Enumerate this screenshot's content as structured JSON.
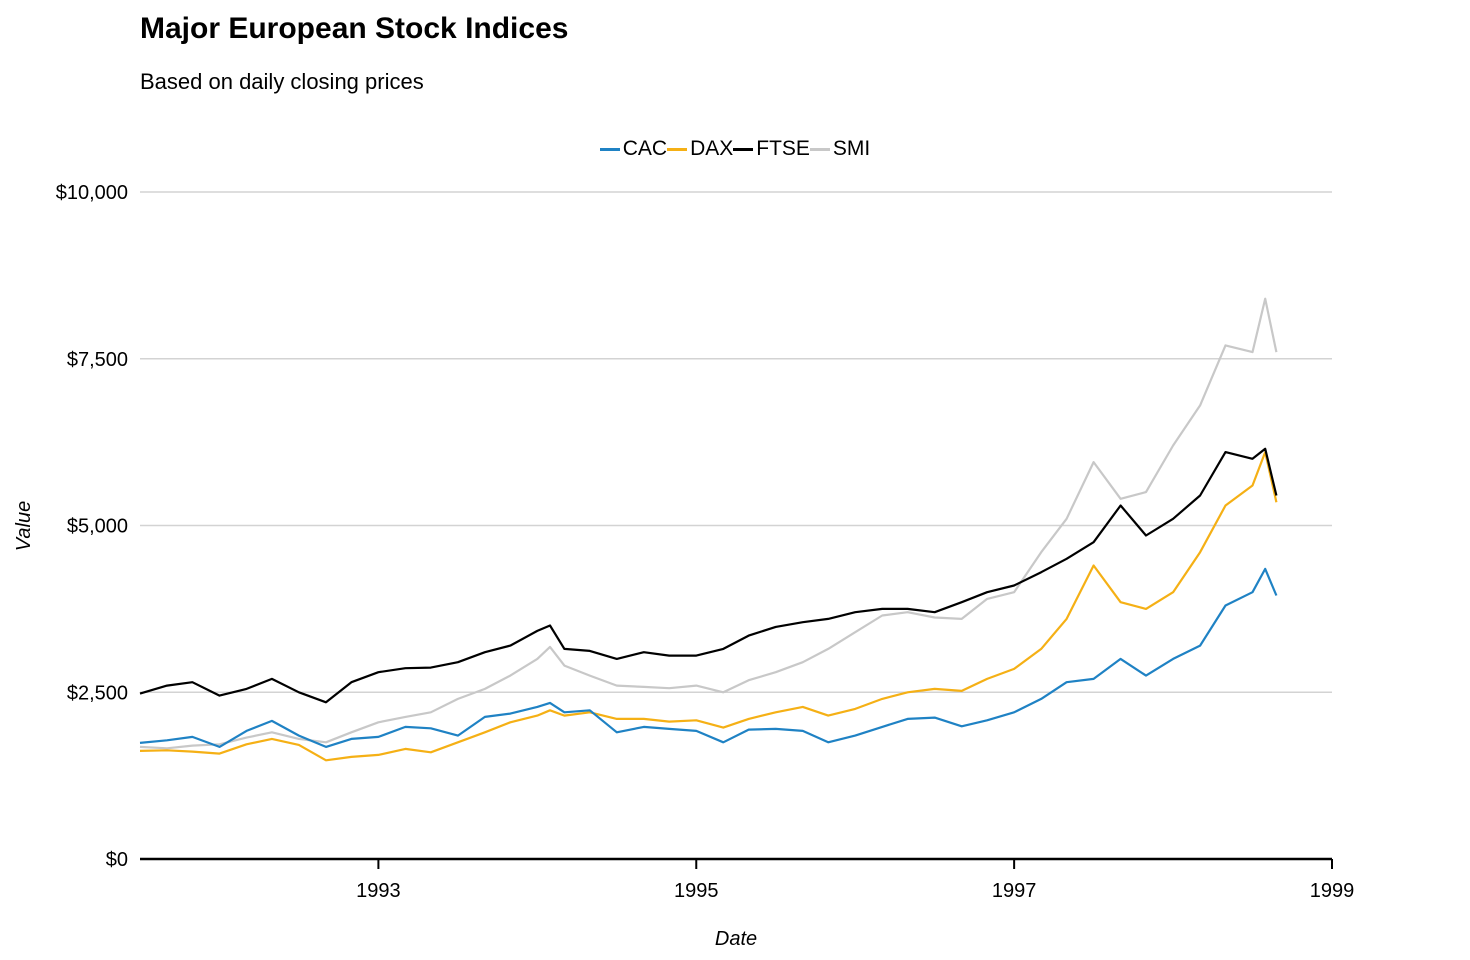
{
  "chart_data": {
    "type": "line",
    "title": "Major European Stock Indices",
    "subtitle": "Based on daily closing prices",
    "xlabel": "Date",
    "ylabel": "Value",
    "xlim": [
      1991.5,
      1999.0
    ],
    "ylim": [
      0,
      10000
    ],
    "x_ticks": [
      1993,
      1995,
      1997,
      1999
    ],
    "x_tick_labels": [
      "1993",
      "1995",
      "1997",
      "1999"
    ],
    "y_ticks": [
      0,
      2500,
      5000,
      7500,
      10000
    ],
    "y_tick_labels": [
      "$0",
      "$2,500",
      "$5,000",
      "$7,500",
      "$10,000"
    ],
    "grid": "horizontal",
    "legend_position": "top",
    "series": [
      {
        "name": "CAC",
        "color": "#1f82c4",
        "x": [
          1991.5,
          1991.67,
          1991.83,
          1992.0,
          1992.17,
          1992.33,
          1992.5,
          1992.67,
          1992.83,
          1993.0,
          1993.17,
          1993.33,
          1993.5,
          1993.67,
          1993.83,
          1994.0,
          1994.08,
          1994.17,
          1994.33,
          1994.5,
          1994.67,
          1994.83,
          1995.0,
          1995.17,
          1995.33,
          1995.5,
          1995.67,
          1995.83,
          1996.0,
          1996.17,
          1996.33,
          1996.5,
          1996.67,
          1996.83,
          1997.0,
          1997.17,
          1997.33,
          1997.5,
          1997.67,
          1997.83,
          1998.0,
          1998.17,
          1998.33,
          1998.5,
          1998.58,
          1998.65
        ],
        "values": [
          1740,
          1780,
          1830,
          1680,
          1920,
          2070,
          1850,
          1680,
          1800,
          1830,
          1980,
          1960,
          1850,
          2130,
          2180,
          2280,
          2340,
          2200,
          2230,
          1900,
          1980,
          1950,
          1920,
          1750,
          1940,
          1950,
          1920,
          1750,
          1850,
          1980,
          2100,
          2120,
          1990,
          2080,
          2200,
          2400,
          2650,
          2700,
          3000,
          2750,
          3000,
          3200,
          3800,
          4000,
          4350,
          3950
        ]
      },
      {
        "name": "DAX",
        "color": "#f5b015",
        "x": [
          1991.5,
          1991.67,
          1991.83,
          1992.0,
          1992.17,
          1992.33,
          1992.5,
          1992.67,
          1992.83,
          1993.0,
          1993.17,
          1993.33,
          1993.5,
          1993.67,
          1993.83,
          1994.0,
          1994.08,
          1994.17,
          1994.33,
          1994.5,
          1994.67,
          1994.83,
          1995.0,
          1995.17,
          1995.33,
          1995.5,
          1995.67,
          1995.83,
          1996.0,
          1996.17,
          1996.33,
          1996.5,
          1996.67,
          1996.83,
          1997.0,
          1997.17,
          1997.33,
          1997.5,
          1997.67,
          1997.83,
          1998.0,
          1998.17,
          1998.33,
          1998.5,
          1998.58,
          1998.65
        ],
        "values": [
          1620,
          1630,
          1610,
          1580,
          1720,
          1800,
          1710,
          1480,
          1530,
          1560,
          1650,
          1600,
          1750,
          1900,
          2050,
          2150,
          2230,
          2150,
          2200,
          2100,
          2100,
          2060,
          2080,
          1970,
          2100,
          2200,
          2280,
          2150,
          2250,
          2400,
          2500,
          2550,
          2520,
          2700,
          2850,
          3150,
          3600,
          4400,
          3850,
          3750,
          4000,
          4600,
          5300,
          5600,
          6100,
          5350
        ]
      },
      {
        "name": "FTSE",
        "color": "#000000",
        "x": [
          1991.5,
          1991.67,
          1991.83,
          1992.0,
          1992.17,
          1992.33,
          1992.5,
          1992.67,
          1992.83,
          1993.0,
          1993.17,
          1993.33,
          1993.5,
          1993.67,
          1993.83,
          1994.0,
          1994.08,
          1994.17,
          1994.33,
          1994.5,
          1994.67,
          1994.83,
          1995.0,
          1995.17,
          1995.33,
          1995.5,
          1995.67,
          1995.83,
          1996.0,
          1996.17,
          1996.33,
          1996.5,
          1996.67,
          1996.83,
          1997.0,
          1997.17,
          1997.33,
          1997.5,
          1997.67,
          1997.83,
          1998.0,
          1998.17,
          1998.33,
          1998.5,
          1998.58,
          1998.65
        ],
        "values": [
          2480,
          2600,
          2650,
          2450,
          2550,
          2700,
          2500,
          2350,
          2650,
          2800,
          2860,
          2870,
          2950,
          3100,
          3200,
          3420,
          3500,
          3150,
          3120,
          3000,
          3100,
          3050,
          3050,
          3150,
          3350,
          3480,
          3550,
          3600,
          3700,
          3750,
          3750,
          3700,
          3850,
          4000,
          4100,
          4300,
          4500,
          4750,
          5300,
          4850,
          5100,
          5450,
          6100,
          6000,
          6150,
          5450
        ]
      },
      {
        "name": "SMI",
        "color": "#c8c8c8",
        "x": [
          1991.5,
          1991.67,
          1991.83,
          1992.0,
          1992.17,
          1992.33,
          1992.5,
          1992.67,
          1992.83,
          1993.0,
          1993.17,
          1993.33,
          1993.5,
          1993.67,
          1993.83,
          1994.0,
          1994.08,
          1994.17,
          1994.33,
          1994.5,
          1994.67,
          1994.83,
          1995.0,
          1995.17,
          1995.33,
          1995.5,
          1995.67,
          1995.83,
          1996.0,
          1996.17,
          1996.33,
          1996.5,
          1996.67,
          1996.83,
          1997.0,
          1997.17,
          1997.33,
          1997.5,
          1997.67,
          1997.83,
          1998.0,
          1998.17,
          1998.33,
          1998.5,
          1998.58,
          1998.65
        ],
        "values": [
          1680,
          1660,
          1700,
          1720,
          1820,
          1900,
          1800,
          1750,
          1900,
          2050,
          2130,
          2200,
          2400,
          2550,
          2750,
          3000,
          3180,
          2900,
          2750,
          2600,
          2580,
          2560,
          2600,
          2500,
          2680,
          2800,
          2950,
          3150,
          3400,
          3650,
          3700,
          3620,
          3600,
          3900,
          4000,
          4600,
          5100,
          5950,
          5400,
          5500,
          6200,
          6800,
          7700,
          7600,
          8400,
          7600
        ]
      }
    ]
  }
}
